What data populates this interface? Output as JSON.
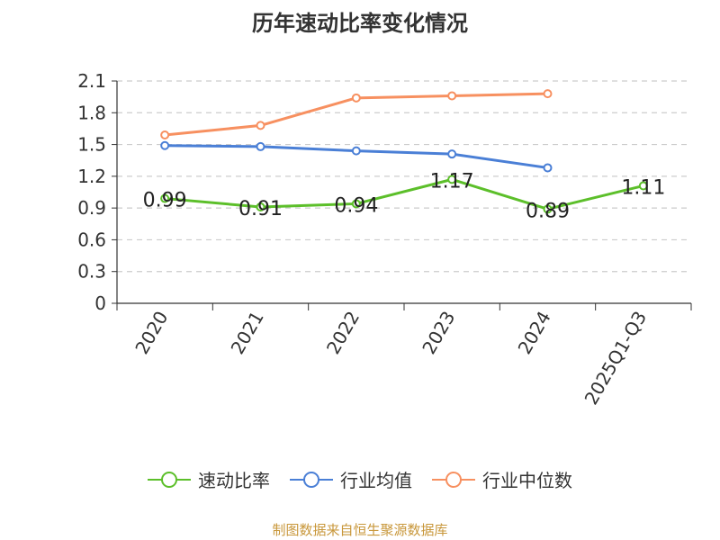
{
  "chart_data": {
    "type": "line",
    "title": "历年速动比率变化情况",
    "categories": [
      "2020",
      "2021",
      "2022",
      "2023",
      "2024",
      "2025Q1-Q3"
    ],
    "ylim": [
      0,
      2.1
    ],
    "yticks": [
      "0",
      "0.3",
      "0.6",
      "0.9",
      "1.2",
      "1.5",
      "1.8",
      "2.1"
    ],
    "grid": true,
    "legend_position": "bottom",
    "series": [
      {
        "name": "速动比率",
        "color": "#5cbf2a",
        "values": [
          0.99,
          0.91,
          0.94,
          1.17,
          0.89,
          1.11
        ],
        "labels": [
          "0.99",
          "0.91",
          "0.94",
          "1.17",
          "0.89",
          "1.11"
        ]
      },
      {
        "name": "行业均值",
        "color": "#4a7fd6",
        "values": [
          1.49,
          1.48,
          1.44,
          1.41,
          1.28,
          null
        ]
      },
      {
        "name": "行业中位数",
        "color": "#f79060",
        "values": [
          1.59,
          1.68,
          1.94,
          1.96,
          1.98,
          null
        ]
      }
    ]
  },
  "source": "制图数据来自恒生聚源数据库"
}
